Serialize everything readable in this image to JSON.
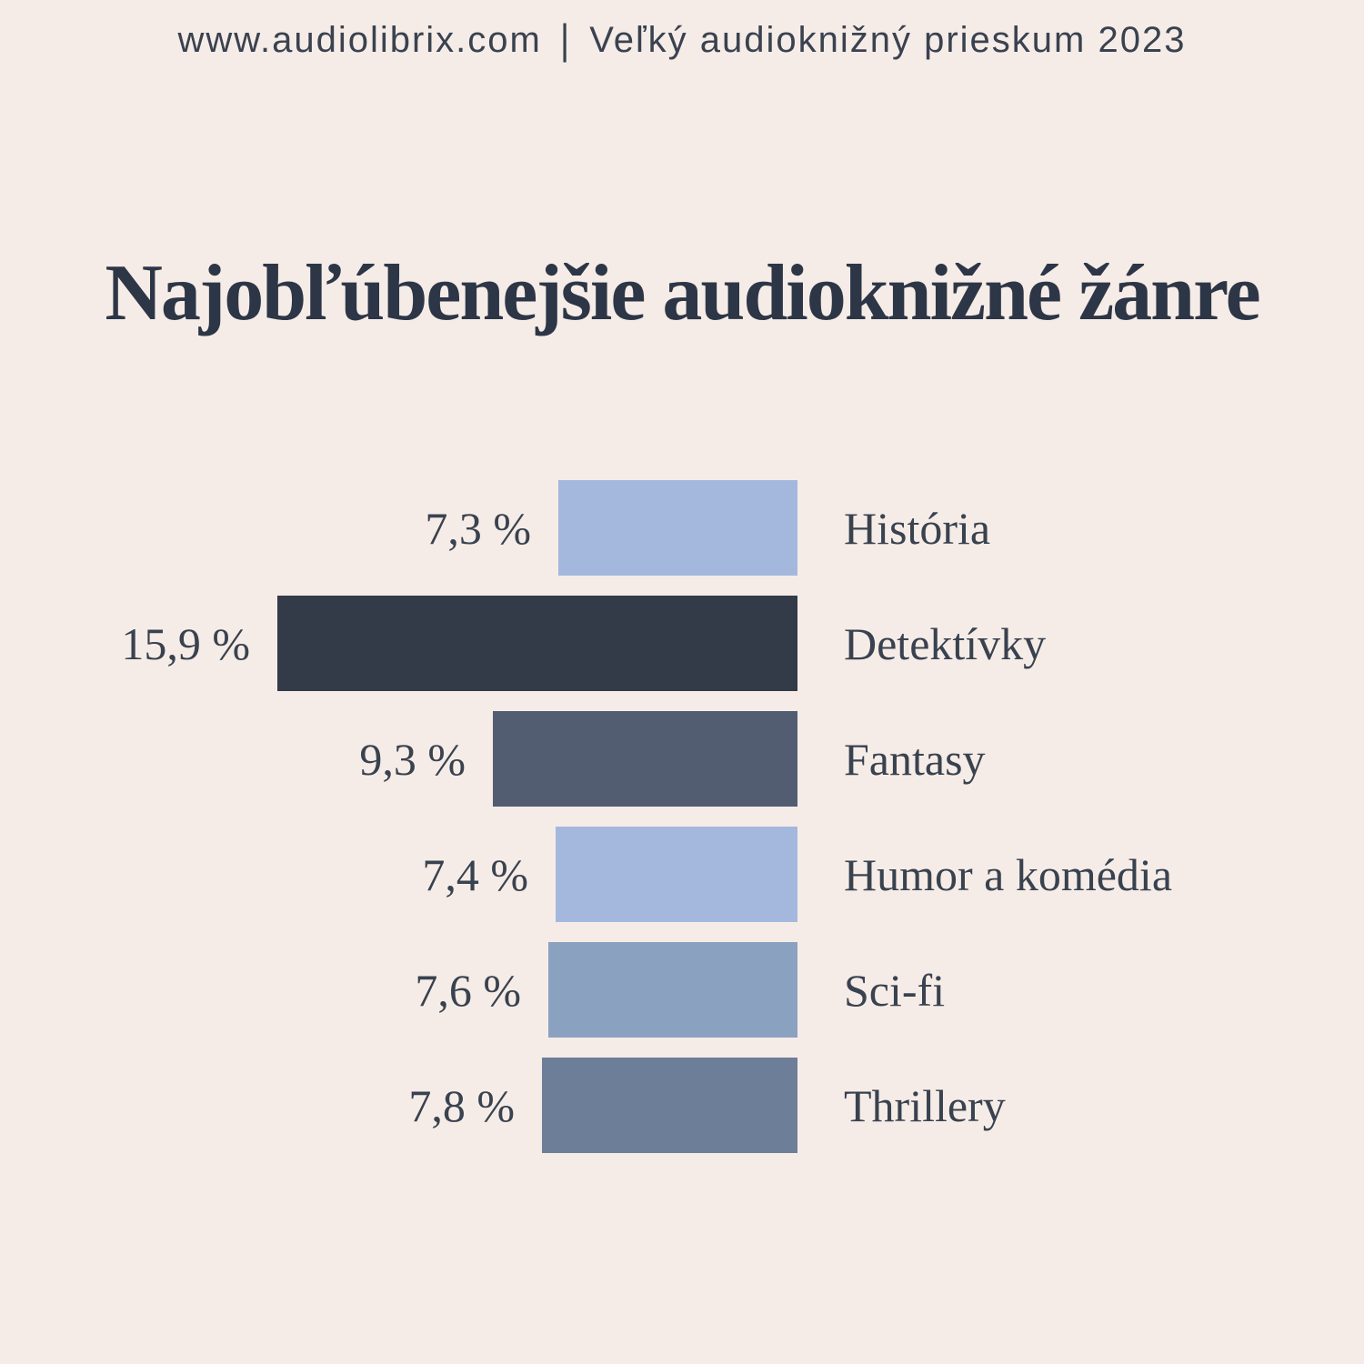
{
  "header": {
    "site": "www.audiolibrix.com",
    "separator": "|",
    "survey": "Veľký audioknižný prieskum 2023"
  },
  "title": "Najobľúbenejšie audioknižné žánre",
  "chart_data": {
    "type": "bar",
    "orientation": "horizontal",
    "title": "Najobľúbenejšie audioknižné žánre",
    "categories": [
      "História",
      "Detektívky",
      "Fantasy",
      "Humor a komédia",
      "Sci-fi",
      "Thrillery"
    ],
    "values": [
      7.3,
      15.9,
      9.3,
      7.4,
      7.6,
      7.8
    ],
    "value_labels": [
      "7,3 %",
      "15,9 %",
      "9,3 %",
      "7,4 %",
      "7,6 %",
      "7,8 %"
    ],
    "bar_colors": [
      "#a4b8de",
      "#333b49",
      "#525d71",
      "#a4b8de",
      "#8ba1c0",
      "#6d7e98"
    ],
    "xlim": [
      0,
      15.9
    ],
    "grid": false,
    "axes_visible": false,
    "value_label_position": "left-of-bar",
    "category_label_position": "right-of-bar",
    "bars_right_aligned": true
  },
  "colors": {
    "background": "#f6ece7",
    "text": "#39424f",
    "title_text": "#2d3646",
    "header_text": "#3a4250"
  }
}
